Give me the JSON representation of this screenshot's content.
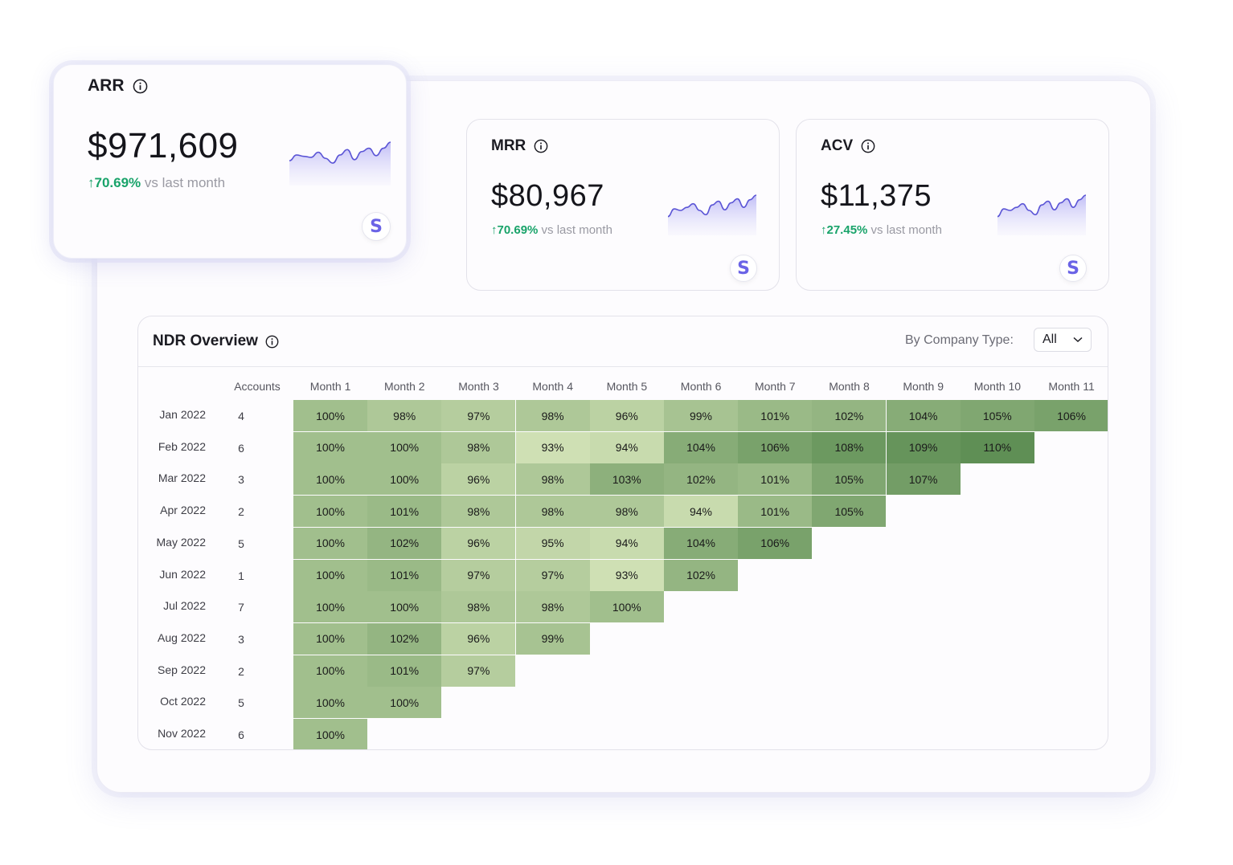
{
  "kpis": [
    {
      "title": "ARR",
      "value": "$971,609",
      "change": "70.69%",
      "change_suffix": "vs last month",
      "brand_letter": "S",
      "sparkline": [
        0.45,
        0.62,
        0.58,
        0.55,
        0.7,
        0.52,
        0.38,
        0.62,
        0.78,
        0.48,
        0.72,
        0.82,
        0.6,
        0.82,
        1.0
      ]
    },
    {
      "title": "MRR",
      "value": "$80,967",
      "change": "70.69%",
      "change_suffix": "vs last month",
      "brand_letter": "S",
      "sparkline": [
        0.3,
        0.55,
        0.5,
        0.6,
        0.72,
        0.5,
        0.36,
        0.68,
        0.8,
        0.52,
        0.75,
        0.88,
        0.6,
        0.85,
        1.0
      ]
    },
    {
      "title": "ACV",
      "value": "$11,375",
      "change": "27.45%",
      "change_suffix": "vs last month",
      "brand_letter": "S",
      "sparkline": [
        0.3,
        0.55,
        0.5,
        0.6,
        0.72,
        0.5,
        0.36,
        0.68,
        0.8,
        0.52,
        0.75,
        0.88,
        0.6,
        0.85,
        1.0
      ]
    }
  ],
  "ndr": {
    "title": "NDR Overview",
    "filter_label": "By Company Type:",
    "filter_value": "All",
    "accounts_header": "Accounts",
    "month_headers": [
      "Month 1",
      "Month 2",
      "Month 3",
      "Month 4",
      "Month 5",
      "Month 6",
      "Month 7",
      "Month 8",
      "Month 9",
      "Month 10",
      "Month 11"
    ],
    "rows": [
      {
        "label": "Jan 2022",
        "accounts": "4",
        "values": [
          "100%",
          "98%",
          "97%",
          "98%",
          "96%",
          "99%",
          "101%",
          "102%",
          "104%",
          "105%",
          "106%"
        ]
      },
      {
        "label": "Feb 2022",
        "accounts": "6",
        "values": [
          "100%",
          "100%",
          "98%",
          "93%",
          "94%",
          "104%",
          "106%",
          "108%",
          "109%",
          "110%"
        ]
      },
      {
        "label": "Mar 2022",
        "accounts": "3",
        "values": [
          "100%",
          "100%",
          "96%",
          "98%",
          "103%",
          "102%",
          "101%",
          "105%",
          "107%"
        ]
      },
      {
        "label": "Apr 2022",
        "accounts": "2",
        "values": [
          "100%",
          "101%",
          "98%",
          "98%",
          "98%",
          "94%",
          "101%",
          "105%"
        ]
      },
      {
        "label": "May 2022",
        "accounts": "5",
        "values": [
          "100%",
          "102%",
          "96%",
          "95%",
          "94%",
          "104%",
          "106%"
        ]
      },
      {
        "label": "Jun 2022",
        "accounts": "1",
        "values": [
          "100%",
          "101%",
          "97%",
          "97%",
          "93%",
          "102%"
        ]
      },
      {
        "label": "Jul 2022",
        "accounts": "7",
        "values": [
          "100%",
          "100%",
          "98%",
          "98%",
          "100%"
        ]
      },
      {
        "label": "Aug 2022",
        "accounts": "3",
        "values": [
          "100%",
          "102%",
          "96%",
          "99%"
        ]
      },
      {
        "label": "Sep 2022",
        "accounts": "2",
        "values": [
          "100%",
          "101%",
          "97%"
        ]
      },
      {
        "label": "Oct 2022",
        "accounts": "5",
        "values": [
          "100%",
          "100%"
        ]
      },
      {
        "label": "Nov 2022",
        "accounts": "6",
        "values": [
          "100%"
        ]
      }
    ]
  },
  "colors": {
    "positive": "#19a36a",
    "brand": "#6a63e6",
    "sparkline": "#5b55d6",
    "heat_low": "#cfe0b4",
    "heat_high": "#5f8f55"
  },
  "icons": {
    "info": "info-circle-icon",
    "arrow_up": "arrow-up-icon",
    "chevron": "chevron-down-icon"
  }
}
